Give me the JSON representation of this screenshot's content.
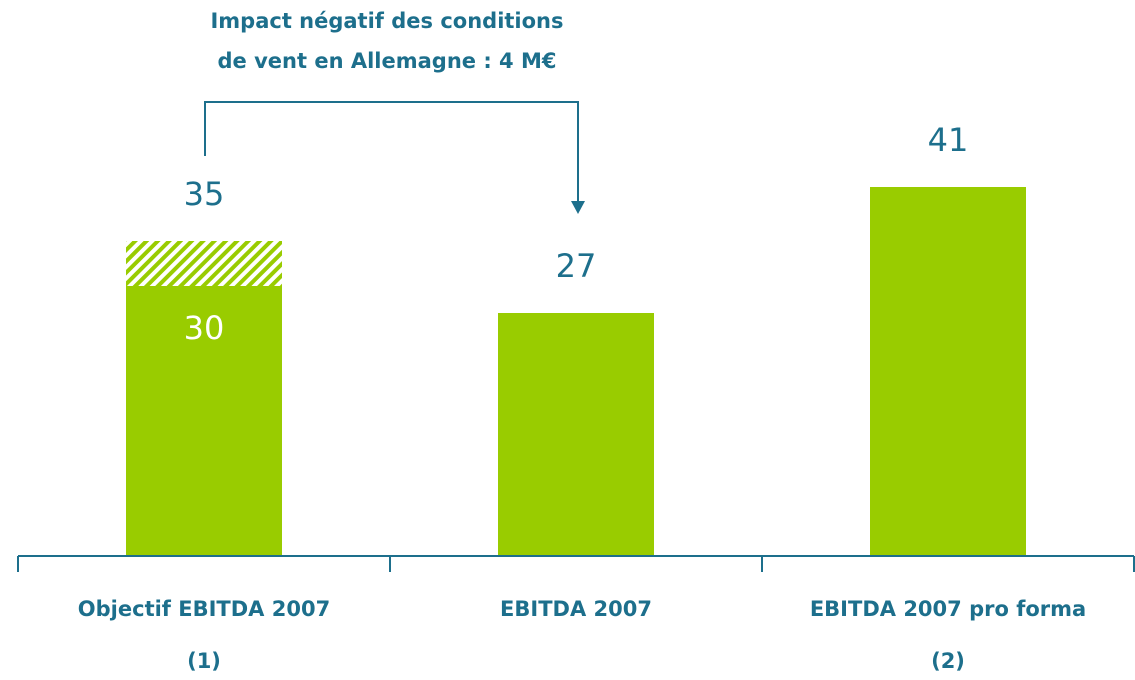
{
  "chart_data": {
    "type": "bar",
    "annotation": [
      "Impact négatif des conditions",
      "de vent en Allemagne : 4 M€"
    ],
    "categories": [
      [
        "Objectif EBITDA 2007",
        "(1)"
      ],
      [
        "EBITDA 2007"
      ],
      [
        "EBITDA 2007 pro forma",
        "(2)"
      ]
    ],
    "series": [
      {
        "color": "#99cc00",
        "values": [
          30,
          27,
          41
        ]
      },
      {
        "color": "#99cc00",
        "pattern": "hatch",
        "values": [
          5,
          null,
          null
        ]
      }
    ],
    "totals": [
      35,
      null,
      null
    ],
    "ylim": [
      0,
      45
    ]
  }
}
